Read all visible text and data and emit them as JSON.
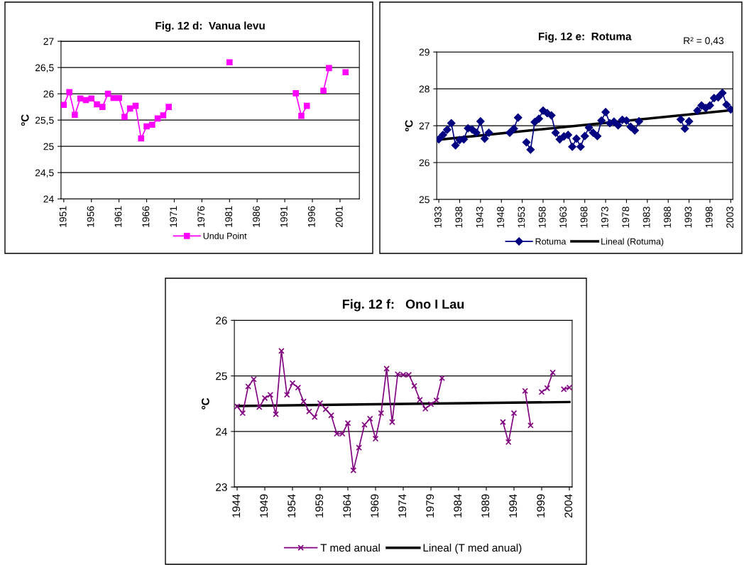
{
  "chart_data": [
    {
      "type": "line",
      "title": "Fig. 12 d:  Vanua levu",
      "ylabel": "ºC",
      "xlim": [
        1950.5,
        2004.5
      ],
      "ylim": [
        24,
        27
      ],
      "xticks": [
        1951,
        1956,
        1961,
        1966,
        1971,
        1976,
        1981,
        1986,
        1991,
        1996,
        2001
      ],
      "yticks": [
        24,
        {
          "value": 24.5,
          "label": "24,5"
        },
        25,
        {
          "value": 25.5,
          "label": "25,5"
        },
        26,
        {
          "value": 26.5,
          "label": "26,5"
        },
        27
      ],
      "grid": "y",
      "legend": "bottom",
      "marker": "square",
      "line_style": "solid",
      "series": [
        {
          "name": "Undu Point",
          "color": "#ff00ff",
          "x": [
            1951,
            1952,
            1953,
            1954,
            1955,
            1956,
            1957,
            1958,
            1959,
            1960,
            1961,
            1962,
            1963,
            1964,
            1965,
            1966,
            1967,
            1968,
            1969,
            1970,
            1971,
            1981,
            1982,
            1993,
            1994,
            1995,
            1996,
            1998,
            1999,
            2000,
            2002
          ],
          "values": [
            25.79,
            26.03,
            25.6,
            25.91,
            25.88,
            25.91,
            25.8,
            25.75,
            26.0,
            25.92,
            25.92,
            25.56,
            25.72,
            25.77,
            25.15,
            25.38,
            25.41,
            25.53,
            25.59,
            25.75,
            null,
            26.6,
            null,
            26.01,
            25.58,
            25.77,
            null,
            26.06,
            26.49,
            null,
            26.41
          ]
        }
      ]
    },
    {
      "type": "line",
      "title": "Fig. 12 e:  Rotuma",
      "ylabel": "ºC",
      "annotations": [
        "R² = 0,43"
      ],
      "xlim": [
        1932.5,
        2003.5
      ],
      "ylim": [
        25,
        29
      ],
      "xticks": [
        1933,
        1938,
        1943,
        1948,
        1953,
        1958,
        1963,
        1968,
        1973,
        1978,
        1983,
        1988,
        1993,
        1998,
        2003
      ],
      "yticks": [
        25,
        26,
        27,
        28,
        29
      ],
      "grid": "y",
      "legend": "bottom",
      "marker": "diamond",
      "line_style": "solid",
      "series": [
        {
          "name": "Rotuma",
          "color": "#000080",
          "x": [
            1933,
            1934,
            1935,
            1936,
            1937,
            1938,
            1939,
            1940,
            1941,
            1942,
            1943,
            1944,
            1945,
            1946,
            1950,
            1951,
            1952,
            1953,
            1954,
            1955,
            1956,
            1957,
            1958,
            1959,
            1960,
            1961,
            1962,
            1963,
            1964,
            1965,
            1966,
            1967,
            1968,
            1969,
            1970,
            1971,
            1972,
            1973,
            1974,
            1975,
            1976,
            1977,
            1978,
            1979,
            1980,
            1981,
            1982,
            1991,
            1992,
            1993,
            1994,
            1995,
            1996,
            1997,
            1998,
            1999,
            2000,
            2001,
            2002,
            2003
          ],
          "values": [
            26.63,
            26.75,
            26.89,
            27.07,
            26.47,
            26.61,
            26.63,
            26.93,
            26.9,
            26.81,
            27.12,
            26.65,
            26.81,
            null,
            26.81,
            26.92,
            27.22,
            null,
            26.55,
            26.35,
            27.1,
            27.19,
            27.41,
            27.34,
            27.28,
            26.81,
            26.63,
            26.71,
            26.75,
            26.43,
            26.65,
            26.43,
            26.72,
            26.95,
            26.81,
            26.72,
            27.14,
            27.37,
            27.07,
            27.11,
            27.01,
            27.16,
            27.14,
            26.97,
            26.87,
            27.12,
            null,
            27.17,
            26.92,
            27.12,
            null,
            27.41,
            27.55,
            27.48,
            27.55,
            27.75,
            27.77,
            27.89,
            27.57,
            27.44
          ]
        },
        {
          "name": "Lineal (Rotuma)",
          "color": "#000000",
          "marker": "none",
          "x": [
            1933,
            2003
          ],
          "values": [
            26.62,
            27.42
          ]
        }
      ]
    },
    {
      "type": "line",
      "title": "Fig. 12 f:   Ono I Lau",
      "ylabel": "ºC",
      "xlim": [
        1943.5,
        2004.5
      ],
      "ylim": [
        23,
        26
      ],
      "xticks": [
        1944,
        1949,
        1954,
        1959,
        1964,
        1969,
        1974,
        1979,
        1984,
        1989,
        1994,
        1999,
        2004
      ],
      "yticks": [
        23,
        24,
        25,
        26
      ],
      "grid": "y",
      "legend": "bottom",
      "marker": "cross",
      "line_style": "solid",
      "series": [
        {
          "name": "T med anual",
          "color": "#800080",
          "x": [
            1944,
            1945,
            1946,
            1947,
            1948,
            1949,
            1950,
            1951,
            1952,
            1953,
            1954,
            1955,
            1956,
            1957,
            1958,
            1959,
            1960,
            1961,
            1962,
            1963,
            1964,
            1965,
            1966,
            1967,
            1968,
            1969,
            1970,
            1971,
            1972,
            1973,
            1974,
            1975,
            1976,
            1977,
            1978,
            1979,
            1980,
            1981,
            1982,
            1992,
            1993,
            1994,
            1995,
            1996,
            1997,
            1998,
            1999,
            2000,
            2001,
            2002,
            2003,
            2004
          ],
          "values": [
            24.45,
            24.33,
            24.81,
            24.94,
            24.44,
            24.6,
            24.66,
            24.31,
            25.45,
            24.66,
            24.87,
            24.79,
            24.54,
            24.36,
            24.26,
            24.51,
            24.4,
            24.29,
            23.96,
            23.96,
            24.15,
            23.3,
            23.71,
            24.12,
            24.23,
            23.87,
            24.33,
            25.13,
            24.17,
            25.03,
            25.02,
            25.02,
            24.82,
            24.57,
            24.41,
            24.49,
            24.56,
            24.96,
            null,
            24.17,
            23.81,
            24.33,
            null,
            24.73,
            24.11,
            null,
            24.71,
            24.78,
            25.06,
            null,
            24.76,
            24.79
          ]
        },
        {
          "name": "Lineal (T med anual)",
          "color": "#000000",
          "marker": "none",
          "x": [
            1944,
            2004
          ],
          "values": [
            24.46,
            24.53
          ]
        }
      ]
    }
  ]
}
